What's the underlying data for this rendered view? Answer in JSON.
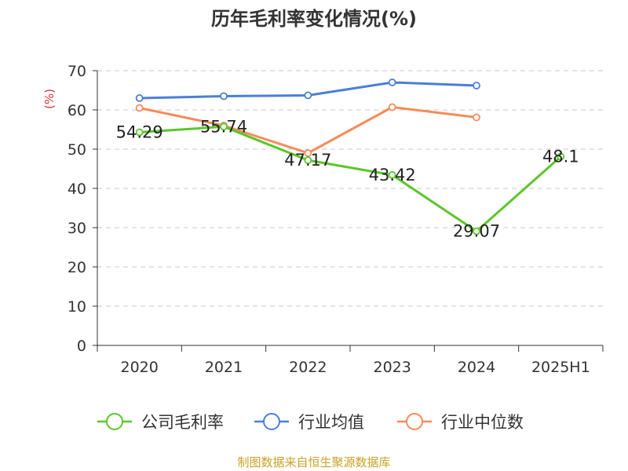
{
  "chart_data": {
    "type": "line",
    "title": "历年毛利率变化情况(%)",
    "ylabel": "(%)",
    "xlabel": "",
    "categories": [
      "2020",
      "2021",
      "2022",
      "2023",
      "2024",
      "2025H1"
    ],
    "ylim": [
      0,
      70
    ],
    "yticks": [
      0,
      10,
      20,
      30,
      40,
      50,
      60,
      70
    ],
    "grid": true,
    "legend_position": "bottom",
    "series": [
      {
        "name": "公司毛利率",
        "color": "#5cc62a",
        "values": [
          54.29,
          55.74,
          47.17,
          43.42,
          29.07,
          48.1
        ],
        "labels": [
          "54.29",
          "55.74",
          "47.17",
          "43.42",
          "29.07",
          "48.1"
        ]
      },
      {
        "name": "行业均值",
        "color": "#4a7fd8",
        "values": [
          63.0,
          63.5,
          63.7,
          67.0,
          66.2,
          null
        ]
      },
      {
        "name": "行业中位数",
        "color": "#f58c5a",
        "values": [
          60.5,
          56.0,
          49.0,
          60.7,
          58.1,
          null
        ]
      }
    ]
  },
  "source": "制图数据来自恒生聚源数据库"
}
